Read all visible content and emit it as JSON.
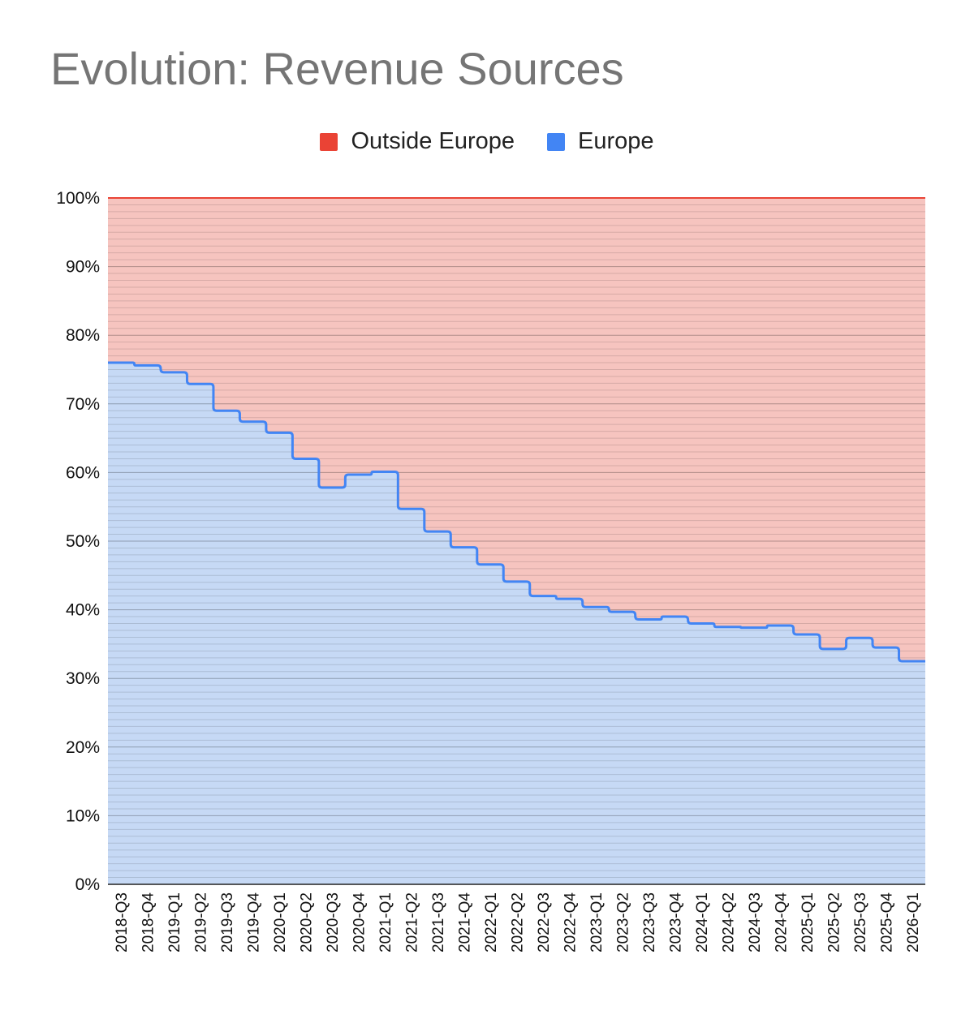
{
  "chart_data": {
    "type": "area",
    "stacked": "percent",
    "step": true,
    "title": "Evolution: Revenue Sources",
    "xlabel": "",
    "ylabel": "",
    "ylim": [
      0,
      100
    ],
    "y_ticks": [
      "0%",
      "10%",
      "20%",
      "30%",
      "40%",
      "50%",
      "60%",
      "70%",
      "80%",
      "90%",
      "100%"
    ],
    "legend_position": "top-center",
    "categories": [
      "2018-Q3",
      "2018-Q4",
      "2019-Q1",
      "2019-Q2",
      "2019-Q3",
      "2019-Q4",
      "2020-Q1",
      "2020-Q2",
      "2020-Q3",
      "2020-Q4",
      "2021-Q1",
      "2021-Q2",
      "2021-Q3",
      "2021-Q4",
      "2022-Q1",
      "2022-Q2",
      "2022-Q3",
      "2022-Q4",
      "2023-Q1",
      "2023-Q2",
      "2023-Q3",
      "2023-Q4",
      "2024-Q1",
      "2024-Q2",
      "2024-Q3",
      "2024-Q4",
      "2025-Q1",
      "2025-Q2",
      "2025-Q3",
      "2025-Q4",
      "2026-Q1"
    ],
    "series": [
      {
        "name": "Outside Europe",
        "color": "#ea4335",
        "fill": "#f6c4bf",
        "values": [
          24.0,
          24.4,
          25.4,
          27.1,
          31.0,
          32.6,
          34.2,
          38.0,
          42.2,
          40.3,
          39.9,
          45.3,
          48.6,
          50.9,
          53.4,
          55.9,
          58.0,
          58.4,
          59.6,
          60.3,
          61.4,
          61.0,
          62.0,
          62.5,
          62.6,
          62.3,
          63.6,
          65.7,
          64.1,
          65.5,
          67.5
        ]
      },
      {
        "name": "Europe",
        "color": "#4285f4",
        "fill": "#c6d9f5",
        "values": [
          76.0,
          75.6,
          74.6,
          72.9,
          69.0,
          67.4,
          65.8,
          62.0,
          57.8,
          59.7,
          60.1,
          54.7,
          51.4,
          49.1,
          46.6,
          44.1,
          42.0,
          41.6,
          40.4,
          39.7,
          38.6,
          39.0,
          38.0,
          37.5,
          37.4,
          37.7,
          36.4,
          34.3,
          35.9,
          34.5,
          32.5
        ]
      }
    ]
  }
}
